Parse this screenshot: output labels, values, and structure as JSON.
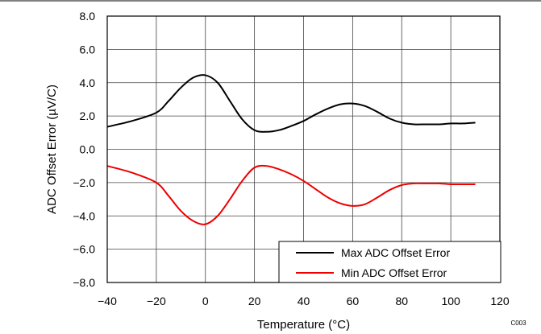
{
  "chart_data": {
    "type": "line",
    "title": "",
    "xlabel": "Temperature (°C)",
    "ylabel": "ADC Offset Error (µV/C)",
    "xlim": [
      -40,
      120
    ],
    "ylim": [
      -8,
      8
    ],
    "x_ticks": [
      -40,
      -20,
      0,
      20,
      40,
      60,
      80,
      100,
      120
    ],
    "y_ticks": [
      -8,
      -6,
      -4,
      -2,
      0,
      2,
      4,
      6,
      8
    ],
    "x_tick_labels": [
      "−40",
      "−20",
      "0",
      "20",
      "40",
      "60",
      "80",
      "100",
      "120"
    ],
    "y_tick_labels": [
      "−8.0",
      "−6.0",
      "−4.0",
      "−2.0",
      "0.0",
      "2.0",
      "4.0",
      "6.0",
      "8.0"
    ],
    "grid": true,
    "legend_position": "bottom-right",
    "figure_code": "C003",
    "series": [
      {
        "name": "Max ADC Offset Error",
        "color": "#000000",
        "x": [
          -40,
          -30,
          -20,
          -15,
          -10,
          -5,
          0,
          5,
          10,
          15,
          20,
          25,
          30,
          35,
          40,
          45,
          50,
          55,
          60,
          65,
          70,
          75,
          80,
          85,
          90,
          95,
          100,
          105,
          110
        ],
        "y": [
          1.35,
          1.7,
          2.2,
          2.9,
          3.7,
          4.3,
          4.45,
          4.0,
          2.9,
          1.8,
          1.15,
          1.05,
          1.15,
          1.4,
          1.7,
          2.1,
          2.45,
          2.7,
          2.75,
          2.6,
          2.25,
          1.85,
          1.6,
          1.5,
          1.5,
          1.5,
          1.55,
          1.55,
          1.6
        ]
      },
      {
        "name": "Min ADC Offset Error",
        "color": "#ee0000",
        "x": [
          -40,
          -30,
          -20,
          -15,
          -10,
          -5,
          0,
          5,
          10,
          15,
          20,
          25,
          30,
          35,
          40,
          45,
          50,
          55,
          60,
          65,
          70,
          75,
          80,
          85,
          90,
          95,
          100,
          105,
          110
        ],
        "y": [
          -1.0,
          -1.4,
          -2.0,
          -2.8,
          -3.7,
          -4.3,
          -4.5,
          -4.0,
          -3.0,
          -1.9,
          -1.1,
          -1.0,
          -1.2,
          -1.5,
          -1.9,
          -2.4,
          -2.9,
          -3.25,
          -3.4,
          -3.3,
          -2.9,
          -2.45,
          -2.15,
          -2.05,
          -2.05,
          -2.05,
          -2.1,
          -2.1,
          -2.1
        ]
      }
    ]
  }
}
